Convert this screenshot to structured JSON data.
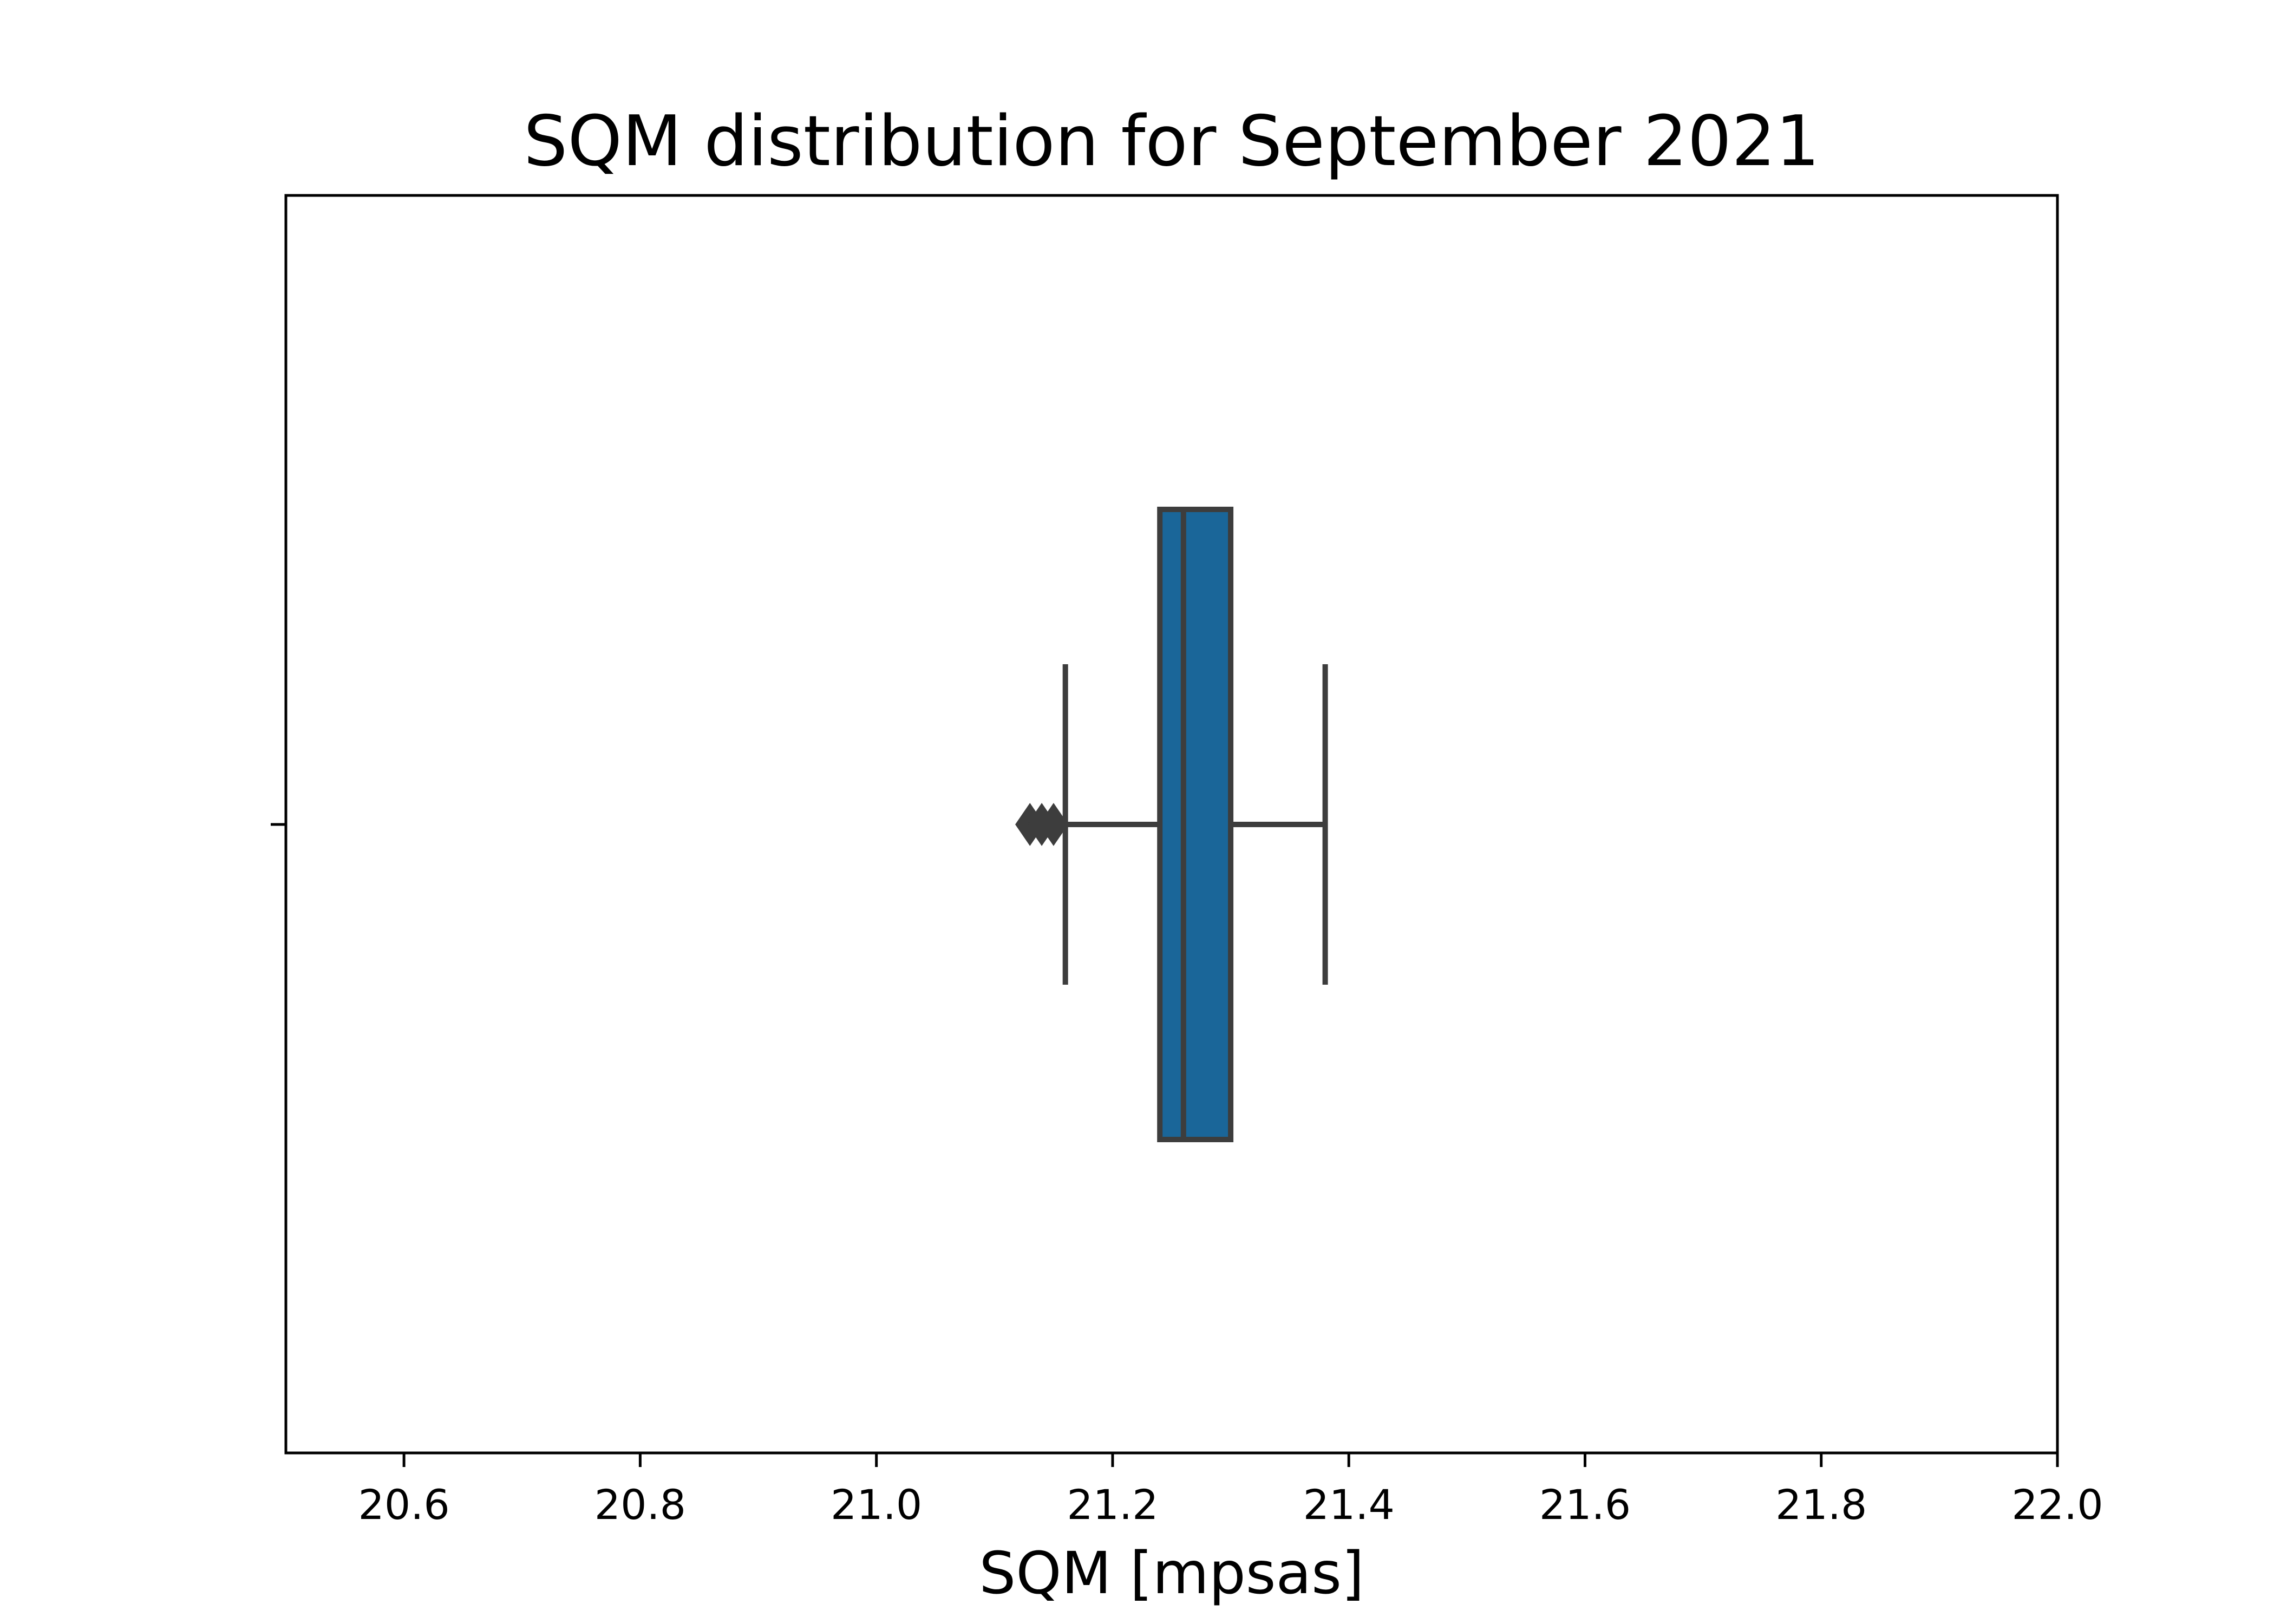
{
  "chart_data": {
    "type": "box",
    "title": "SQM distribution for September 2021",
    "xlabel": "SQM [mpsas]",
    "ylabel": "",
    "xlim": [
      20.5,
      22.0
    ],
    "xticks": [
      20.6,
      20.8,
      21.0,
      21.2,
      21.4,
      21.6,
      21.8,
      22.0
    ],
    "xtick_labels": [
      "20.6",
      "20.8",
      "21.0",
      "21.2",
      "21.4",
      "21.6",
      "21.8",
      "22.0"
    ],
    "grid": false,
    "orientation": "horizontal",
    "box": {
      "q1": 21.24,
      "median": 21.26,
      "q3": 21.3,
      "whisker_low": 21.16,
      "whisker_high": 21.38,
      "outliers": [
        21.13,
        21.14,
        21.15
      ]
    },
    "colors": {
      "box_fill": "#1a6699",
      "box_edge": "#3d3d3d",
      "axis": "#000000"
    }
  }
}
